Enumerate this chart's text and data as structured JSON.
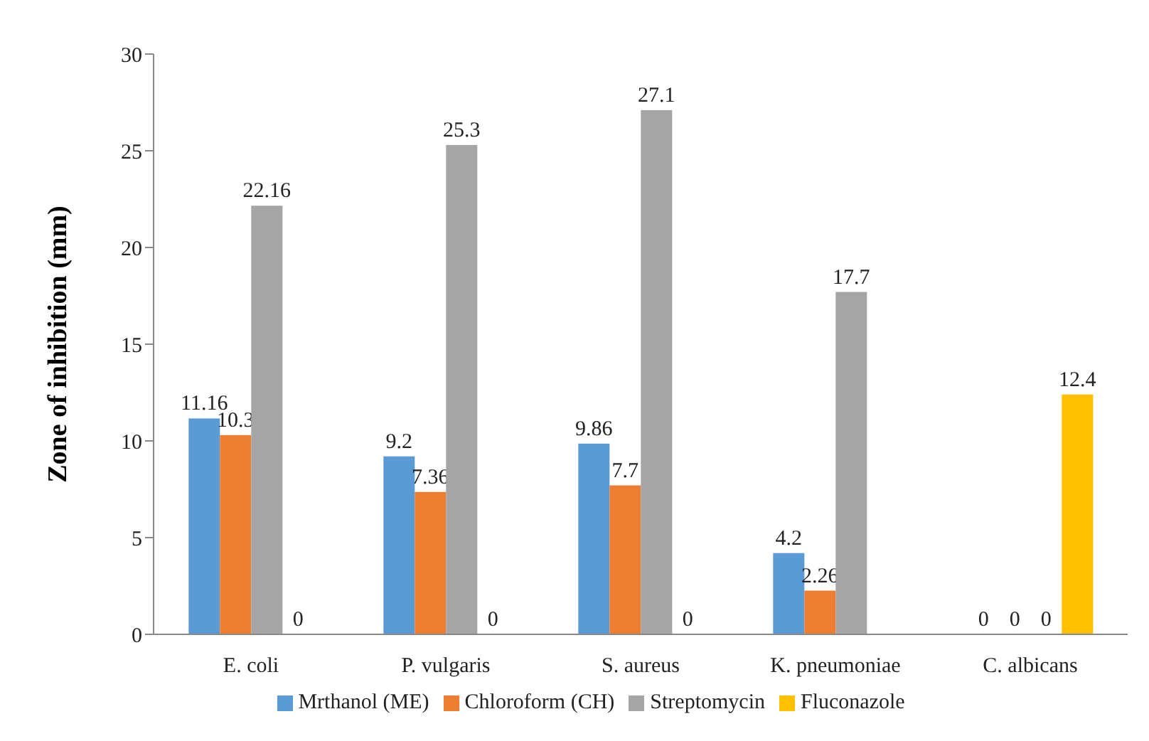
{
  "chart_data": {
    "type": "bar",
    "ylabel": "Zone of inhibition  (mm)",
    "categories": [
      "E. coli",
      "P. vulgaris",
      "S. aureus",
      "K. pneumoniae",
      "C. albicans"
    ],
    "series": [
      {
        "name": "Mrthanol (ME)",
        "color": "#5b9bd5",
        "values": [
          11.16,
          9.2,
          9.86,
          4.2,
          0
        ]
      },
      {
        "name": "Chloroform (CH)",
        "color": "#ed7d31",
        "values": [
          10.3,
          7.36,
          7.7,
          2.26,
          0
        ]
      },
      {
        "name": "Streptomycin",
        "color": "#a5a5a5",
        "values": [
          22.16,
          25.3,
          27.1,
          17.7,
          0
        ]
      },
      {
        "name": "Fluconazole",
        "color": "#ffc000",
        "values": [
          0,
          0,
          0,
          null,
          12.4
        ]
      }
    ],
    "ylim": [
      0,
      30
    ],
    "yticks": [
      0,
      5,
      10,
      15,
      20,
      25,
      30
    ],
    "grid": false,
    "legend": "bottom",
    "data_labels": true
  }
}
